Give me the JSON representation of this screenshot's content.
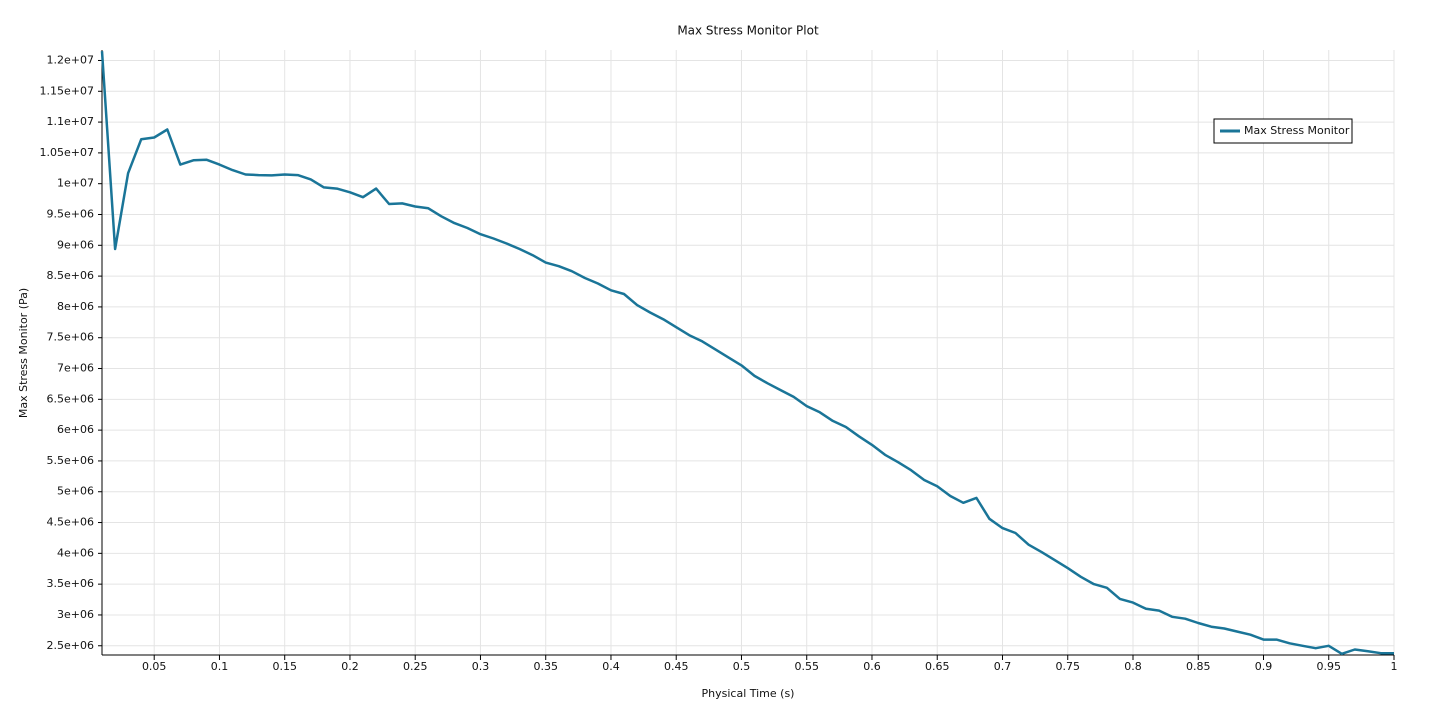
{
  "chart_data": {
    "type": "line",
    "title": "Max Stress Monitor Plot",
    "xlabel": "Physical Time (s)",
    "ylabel": "Max Stress Monitor (Pa)",
    "x": [
      0.01,
      0.02,
      0.03,
      0.04,
      0.05,
      0.06,
      0.07,
      0.08,
      0.09,
      0.1,
      0.11,
      0.12,
      0.13,
      0.14,
      0.15,
      0.16,
      0.17,
      0.18,
      0.19,
      0.2,
      0.21,
      0.22,
      0.23,
      0.24,
      0.25,
      0.26,
      0.27,
      0.28,
      0.29,
      0.3,
      0.31,
      0.32,
      0.33,
      0.34,
      0.35,
      0.36,
      0.37,
      0.38,
      0.39,
      0.4,
      0.41,
      0.42,
      0.43,
      0.44,
      0.45,
      0.46,
      0.47,
      0.48,
      0.49,
      0.5,
      0.51,
      0.52,
      0.53,
      0.54,
      0.55,
      0.56,
      0.57,
      0.58,
      0.59,
      0.6,
      0.61,
      0.62,
      0.63,
      0.64,
      0.65,
      0.66,
      0.67,
      0.68,
      0.69,
      0.7,
      0.71,
      0.72,
      0.73,
      0.74,
      0.75,
      0.76,
      0.77,
      0.78,
      0.79,
      0.8,
      0.81,
      0.82,
      0.83,
      0.84,
      0.85,
      0.86,
      0.87,
      0.88,
      0.89,
      0.9,
      0.91,
      0.92,
      0.93,
      0.94,
      0.95,
      0.96,
      0.97,
      0.98,
      0.99,
      1
    ],
    "series": [
      {
        "name": "Max Stress Monitor",
        "color": "#1a7598",
        "values": [
          12150000,
          8940000,
          10170000,
          10720000,
          10750000,
          10880000,
          10310000,
          10380000,
          10390000,
          10310000,
          10220000,
          10150000,
          10140000,
          10135000,
          10150000,
          10140000,
          10070000,
          9940000,
          9920000,
          9860000,
          9780000,
          9920000,
          9670000,
          9680000,
          9630000,
          9600000,
          9470000,
          9360000,
          9280000,
          9180000,
          9110000,
          9030000,
          8940000,
          8840000,
          8720000,
          8660000,
          8580000,
          8470000,
          8380000,
          8270000,
          8210000,
          8030000,
          7910000,
          7800000,
          7670000,
          7540000,
          7440000,
          7310000,
          7180000,
          7050000,
          6880000,
          6760000,
          6650000,
          6540000,
          6390000,
          6290000,
          6150000,
          6050000,
          5900000,
          5760000,
          5600000,
          5480000,
          5350000,
          5190000,
          5090000,
          4930000,
          4820000,
          4900000,
          4560000,
          4410000,
          4330000,
          4140000,
          4020000,
          3890000,
          3760000,
          3620000,
          3500000,
          3440000,
          3260000,
          3200000,
          3100000,
          3070000,
          2970000,
          2940000,
          2870000,
          2810000,
          2780000,
          2730000,
          2680000,
          2600000,
          2600000,
          2540000,
          2500000,
          2460000,
          2500000,
          2370000,
          2440000,
          2410000,
          2380000,
          2380000
        ]
      }
    ],
    "xlim": [
      0.01,
      1
    ],
    "ylim": [
      2350000,
      12170000
    ],
    "xticks": [
      0.05,
      0.1,
      0.15,
      0.2,
      0.25,
      0.3,
      0.35,
      0.4,
      0.45,
      0.5,
      0.55,
      0.6,
      0.65,
      0.7,
      0.75,
      0.8,
      0.85,
      0.9,
      0.95,
      1
    ],
    "yticks": [
      {
        "value": 2500000,
        "label": "2.5e+06"
      },
      {
        "value": 3000000,
        "label": "3e+06"
      },
      {
        "value": 3500000,
        "label": "3.5e+06"
      },
      {
        "value": 4000000,
        "label": "4e+06"
      },
      {
        "value": 4500000,
        "label": "4.5e+06"
      },
      {
        "value": 5000000,
        "label": "5e+06"
      },
      {
        "value": 5500000,
        "label": "5.5e+06"
      },
      {
        "value": 6000000,
        "label": "6e+06"
      },
      {
        "value": 6500000,
        "label": "6.5e+06"
      },
      {
        "value": 7000000,
        "label": "7e+06"
      },
      {
        "value": 7500000,
        "label": "7.5e+06"
      },
      {
        "value": 8000000,
        "label": "8e+06"
      },
      {
        "value": 8500000,
        "label": "8.5e+06"
      },
      {
        "value": 9000000,
        "label": "9e+06"
      },
      {
        "value": 9500000,
        "label": "9.5e+06"
      },
      {
        "value": 10000000,
        "label": "1e+07"
      },
      {
        "value": 10500000,
        "label": "1.05e+07"
      },
      {
        "value": 11000000,
        "label": "1.1e+07"
      },
      {
        "value": 11500000,
        "label": "1.15e+07"
      },
      {
        "value": 12000000,
        "label": "1.2e+07"
      }
    ],
    "grid": true,
    "legend": "top-right"
  }
}
